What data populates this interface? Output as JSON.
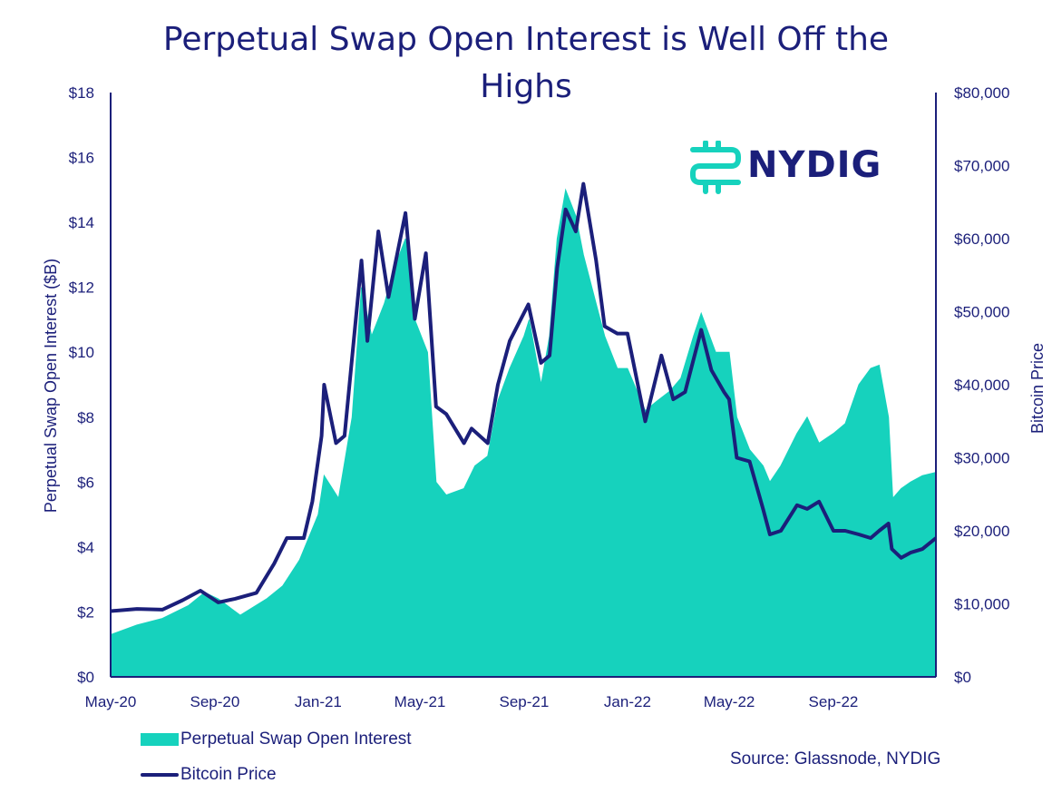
{
  "chart_data": {
    "type": "area+line",
    "title": "Perpetual Swap Open Interest is Well Off the Highs",
    "ylabel_left": "Perpetual Swap Open Interest ($B)",
    "ylabel_right": "Bitcoin Price",
    "ylim_left": [
      0,
      18
    ],
    "ylim_right": [
      0,
      80000
    ],
    "yticks_left": [
      "$0",
      "$2",
      "$4",
      "$6",
      "$8",
      "$10",
      "$12",
      "$14",
      "$16",
      "$18"
    ],
    "yticks_right": [
      "$0",
      "$10,000",
      "$20,000",
      "$30,000",
      "$40,000",
      "$50,000",
      "$60,000",
      "$70,000",
      "$80,000"
    ],
    "xlim": [
      "2020-05-01",
      "2022-12-31"
    ],
    "xticks": [
      "May-20",
      "Sep-20",
      "Jan-21",
      "May-21",
      "Sep-21",
      "Jan-22",
      "May-22",
      "Sep-22"
    ],
    "xtick_dates": [
      "2020-05-01",
      "2020-09-01",
      "2021-01-01",
      "2021-05-01",
      "2021-09-01",
      "2022-01-01",
      "2022-05-01",
      "2022-09-01"
    ],
    "series": [
      {
        "name": "Perpetual Swap Open Interest",
        "axis": "left",
        "color": "#16d2bd",
        "x": [
          "2020-05-01",
          "2020-06-01",
          "2020-07-01",
          "2020-08-01",
          "2020-08-20",
          "2020-09-05",
          "2020-10-01",
          "2020-11-01",
          "2020-11-20",
          "2020-12-10",
          "2021-01-01",
          "2021-01-08",
          "2021-01-25",
          "2021-02-10",
          "2021-02-21",
          "2021-03-05",
          "2021-03-20",
          "2021-04-01",
          "2021-04-14",
          "2021-04-25",
          "2021-05-10",
          "2021-05-20",
          "2021-06-01",
          "2021-06-22",
          "2021-07-05",
          "2021-07-20",
          "2021-08-01",
          "2021-08-15",
          "2021-09-01",
          "2021-09-07",
          "2021-09-21",
          "2021-10-01",
          "2021-10-10",
          "2021-10-20",
          "2021-11-01",
          "2021-11-10",
          "2021-11-25",
          "2021-12-05",
          "2021-12-20",
          "2022-01-01",
          "2022-01-22",
          "2022-02-05",
          "2022-02-20",
          "2022-03-05",
          "2022-03-20",
          "2022-03-29",
          "2022-04-15",
          "2022-05-01",
          "2022-05-10",
          "2022-05-25",
          "2022-06-10",
          "2022-06-18",
          "2022-07-01",
          "2022-07-20",
          "2022-08-01",
          "2022-08-15",
          "2022-09-01",
          "2022-09-15",
          "2022-10-01",
          "2022-10-15",
          "2022-10-25",
          "2022-11-05",
          "2022-11-10",
          "2022-11-20",
          "2022-12-01",
          "2022-12-15",
          "2022-12-31"
        ],
        "values": [
          1.3,
          1.6,
          1.8,
          2.2,
          2.6,
          2.4,
          1.9,
          2.4,
          2.8,
          3.6,
          5.0,
          6.2,
          5.5,
          8.0,
          12.0,
          10.5,
          11.5,
          12.6,
          13.5,
          11.0,
          10.0,
          6.0,
          5.6,
          5.8,
          6.5,
          6.8,
          8.5,
          9.5,
          10.5,
          11.0,
          9.0,
          10.5,
          13.5,
          15.0,
          14.2,
          13.0,
          11.5,
          10.5,
          9.5,
          9.5,
          8.2,
          8.5,
          8.8,
          9.2,
          10.5,
          11.2,
          10.0,
          10.0,
          8.0,
          7.0,
          6.5,
          6.0,
          6.5,
          7.5,
          8.0,
          7.2,
          7.5,
          7.8,
          9.0,
          9.5,
          9.6,
          8.0,
          5.5,
          5.8,
          6.0,
          6.2,
          6.3
        ]
      },
      {
        "name": "Bitcoin Price",
        "axis": "right",
        "color": "#1b1f7a",
        "x": [
          "2020-05-01",
          "2020-06-01",
          "2020-07-01",
          "2020-07-25",
          "2020-08-15",
          "2020-09-05",
          "2020-09-25",
          "2020-10-20",
          "2020-11-10",
          "2020-11-25",
          "2020-12-15",
          "2020-12-25",
          "2021-01-05",
          "2021-01-08",
          "2021-01-22",
          "2021-02-01",
          "2021-02-21",
          "2021-02-28",
          "2021-03-13",
          "2021-03-25",
          "2021-04-14",
          "2021-04-25",
          "2021-05-08",
          "2021-05-20",
          "2021-06-01",
          "2021-06-22",
          "2021-07-01",
          "2021-07-20",
          "2021-08-01",
          "2021-08-15",
          "2021-09-06",
          "2021-09-21",
          "2021-10-01",
          "2021-10-10",
          "2021-10-20",
          "2021-11-01",
          "2021-11-10",
          "2021-11-25",
          "2021-12-05",
          "2021-12-20",
          "2022-01-01",
          "2022-01-22",
          "2022-02-10",
          "2022-02-24",
          "2022-03-10",
          "2022-03-29",
          "2022-04-10",
          "2022-04-25",
          "2022-05-01",
          "2022-05-10",
          "2022-05-25",
          "2022-06-10",
          "2022-06-18",
          "2022-07-01",
          "2022-07-20",
          "2022-08-01",
          "2022-08-15",
          "2022-09-01",
          "2022-09-15",
          "2022-10-01",
          "2022-10-15",
          "2022-10-25",
          "2022-11-05",
          "2022-11-09",
          "2022-11-20",
          "2022-12-01",
          "2022-12-15",
          "2022-12-31"
        ],
        "values": [
          9000,
          9300,
          9200,
          10500,
          11800,
          10200,
          10700,
          11500,
          15500,
          19000,
          19000,
          24000,
          33000,
          40000,
          32000,
          33000,
          57000,
          46000,
          61000,
          52000,
          63500,
          49000,
          58000,
          37000,
          36000,
          32000,
          34000,
          32000,
          40000,
          46000,
          51000,
          43000,
          44000,
          56000,
          64000,
          61000,
          67500,
          57000,
          48000,
          47000,
          47000,
          35000,
          44000,
          38000,
          39000,
          47500,
          42000,
          39000,
          38000,
          30000,
          29500,
          23000,
          19500,
          20000,
          23500,
          23000,
          24000,
          20000,
          20000,
          19500,
          19000,
          20000,
          21000,
          17500,
          16300,
          17000,
          17500,
          19000
        ]
      }
    ],
    "legend_placement": "bottom-left",
    "source": "Source: Glassnode, NYDIG",
    "logo_text": "NYDIG",
    "colors": {
      "navy": "#1b1f7a",
      "teal": "#16d2bd"
    }
  }
}
